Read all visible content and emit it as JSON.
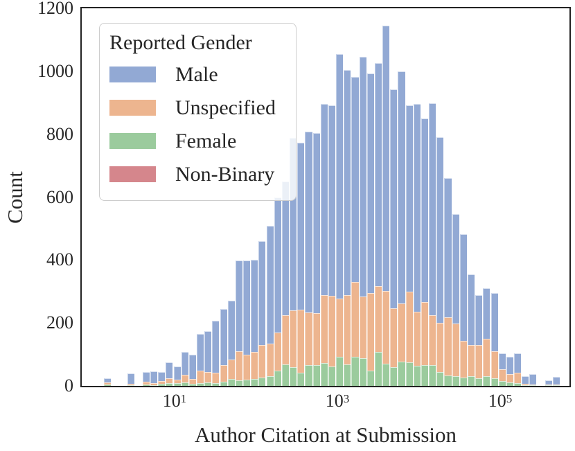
{
  "figure": {
    "y_axis": {
      "label": "Count",
      "ticks": [
        0,
        200,
        400,
        600,
        800,
        1000,
        1200
      ],
      "max": 1200
    },
    "x_axis": {
      "label": "Author Citation at Submission",
      "ticks": [
        {
          "mantissa": "10",
          "exponent": "1"
        },
        {
          "mantissa": "10",
          "exponent": "3"
        },
        {
          "mantissa": "10",
          "exponent": "5"
        }
      ]
    },
    "legend": {
      "title": "Reported Gender",
      "items": [
        {
          "label": "Male",
          "key": "male"
        },
        {
          "label": "Unspecified",
          "key": "unspecified"
        },
        {
          "label": "Female",
          "key": "female"
        },
        {
          "label": "Non-Binary",
          "key": "nonbinary"
        }
      ]
    }
  },
  "colors": {
    "male": "#92a9d4",
    "unspecified": "#edb58f",
    "female": "#9bcb9d",
    "nonbinary": "#d5868c",
    "text": "#262626",
    "spine": "#222222",
    "legend_border": "#cccccc"
  },
  "chart_data": {
    "type": "bar",
    "subtype": "stacked-histogram",
    "title": "",
    "xlabel": "Author Citation at Submission",
    "ylabel": "Count",
    "x_scale": "log10",
    "x_tick_values": [
      10,
      1000,
      100000
    ],
    "x_tick_exponents": [
      1,
      3,
      5
    ],
    "ylim": [
      0,
      1200
    ],
    "grid": false,
    "legend_position": "upper-left",
    "legend_title": "Reported Gender",
    "bin_log10_start": 0.15,
    "bin_log10_width": 0.095,
    "stack_order_bottom_to_top": [
      "Female",
      "Unspecified",
      "Male",
      "Non-Binary"
    ],
    "series": [
      {
        "name": "Female",
        "key": "female",
        "values": [
          4,
          0,
          0,
          2,
          0,
          4,
          3,
          7,
          8,
          9,
          11,
          7,
          9,
          10,
          8,
          14,
          23,
          18,
          19,
          23,
          26,
          31,
          48,
          68,
          60,
          41,
          67,
          67,
          73,
          61,
          93,
          68,
          93,
          88,
          49,
          107,
          71,
          60,
          76,
          74,
          63,
          67,
          65,
          45,
          34,
          30,
          27,
          30,
          24,
          30,
          24,
          15,
          12,
          8,
          2,
          1,
          0,
          1,
          1
        ]
      },
      {
        "name": "Unspecified",
        "key": "unspecified",
        "values": [
          6,
          0,
          0,
          5,
          0,
          9,
          5,
          8,
          16,
          10,
          24,
          16,
          39,
          35,
          33,
          53,
          60,
          93,
          81,
          84,
          103,
          103,
          122,
          157,
          180,
          202,
          167,
          165,
          216,
          225,
          184,
          220,
          237,
          196,
          247,
          211,
          230,
          187,
          186,
          225,
          173,
          200,
          160,
          155,
          184,
          169,
          117,
          99,
          105,
          119,
          87,
          37,
          26,
          33,
          4,
          3,
          0,
          1,
          2
        ]
      },
      {
        "name": "Male",
        "key": "male",
        "values": [
          14,
          0,
          0,
          33,
          0,
          32,
          39,
          30,
          50,
          42,
          74,
          77,
          118,
          130,
          166,
          178,
          188,
          288,
          299,
          294,
          331,
          374,
          430,
          425,
          549,
          530,
          574,
          572,
          607,
          606,
          777,
          716,
          652,
          761,
          696,
          708,
          843,
          695,
          737,
          593,
          661,
          584,
          674,
          590,
          442,
          346,
          338,
          225,
          159,
          162,
          185,
          52,
          55,
          63,
          25,
          33,
          0,
          13,
          25
        ]
      },
      {
        "name": "Non-Binary",
        "key": "nonbinary",
        "values": [
          0,
          0,
          0,
          0,
          0,
          0,
          0,
          0,
          0,
          0,
          0,
          0,
          0,
          0,
          0,
          0,
          0,
          0,
          0,
          0,
          0,
          0,
          0,
          0,
          0,
          0,
          0,
          0,
          0,
          0,
          0,
          0,
          0,
          0,
          0,
          0,
          0,
          0,
          0,
          0,
          0,
          0,
          0,
          0,
          0,
          0,
          0,
          0,
          0,
          0,
          0,
          0,
          0,
          0,
          0,
          0,
          0,
          0,
          0
        ]
      }
    ]
  }
}
